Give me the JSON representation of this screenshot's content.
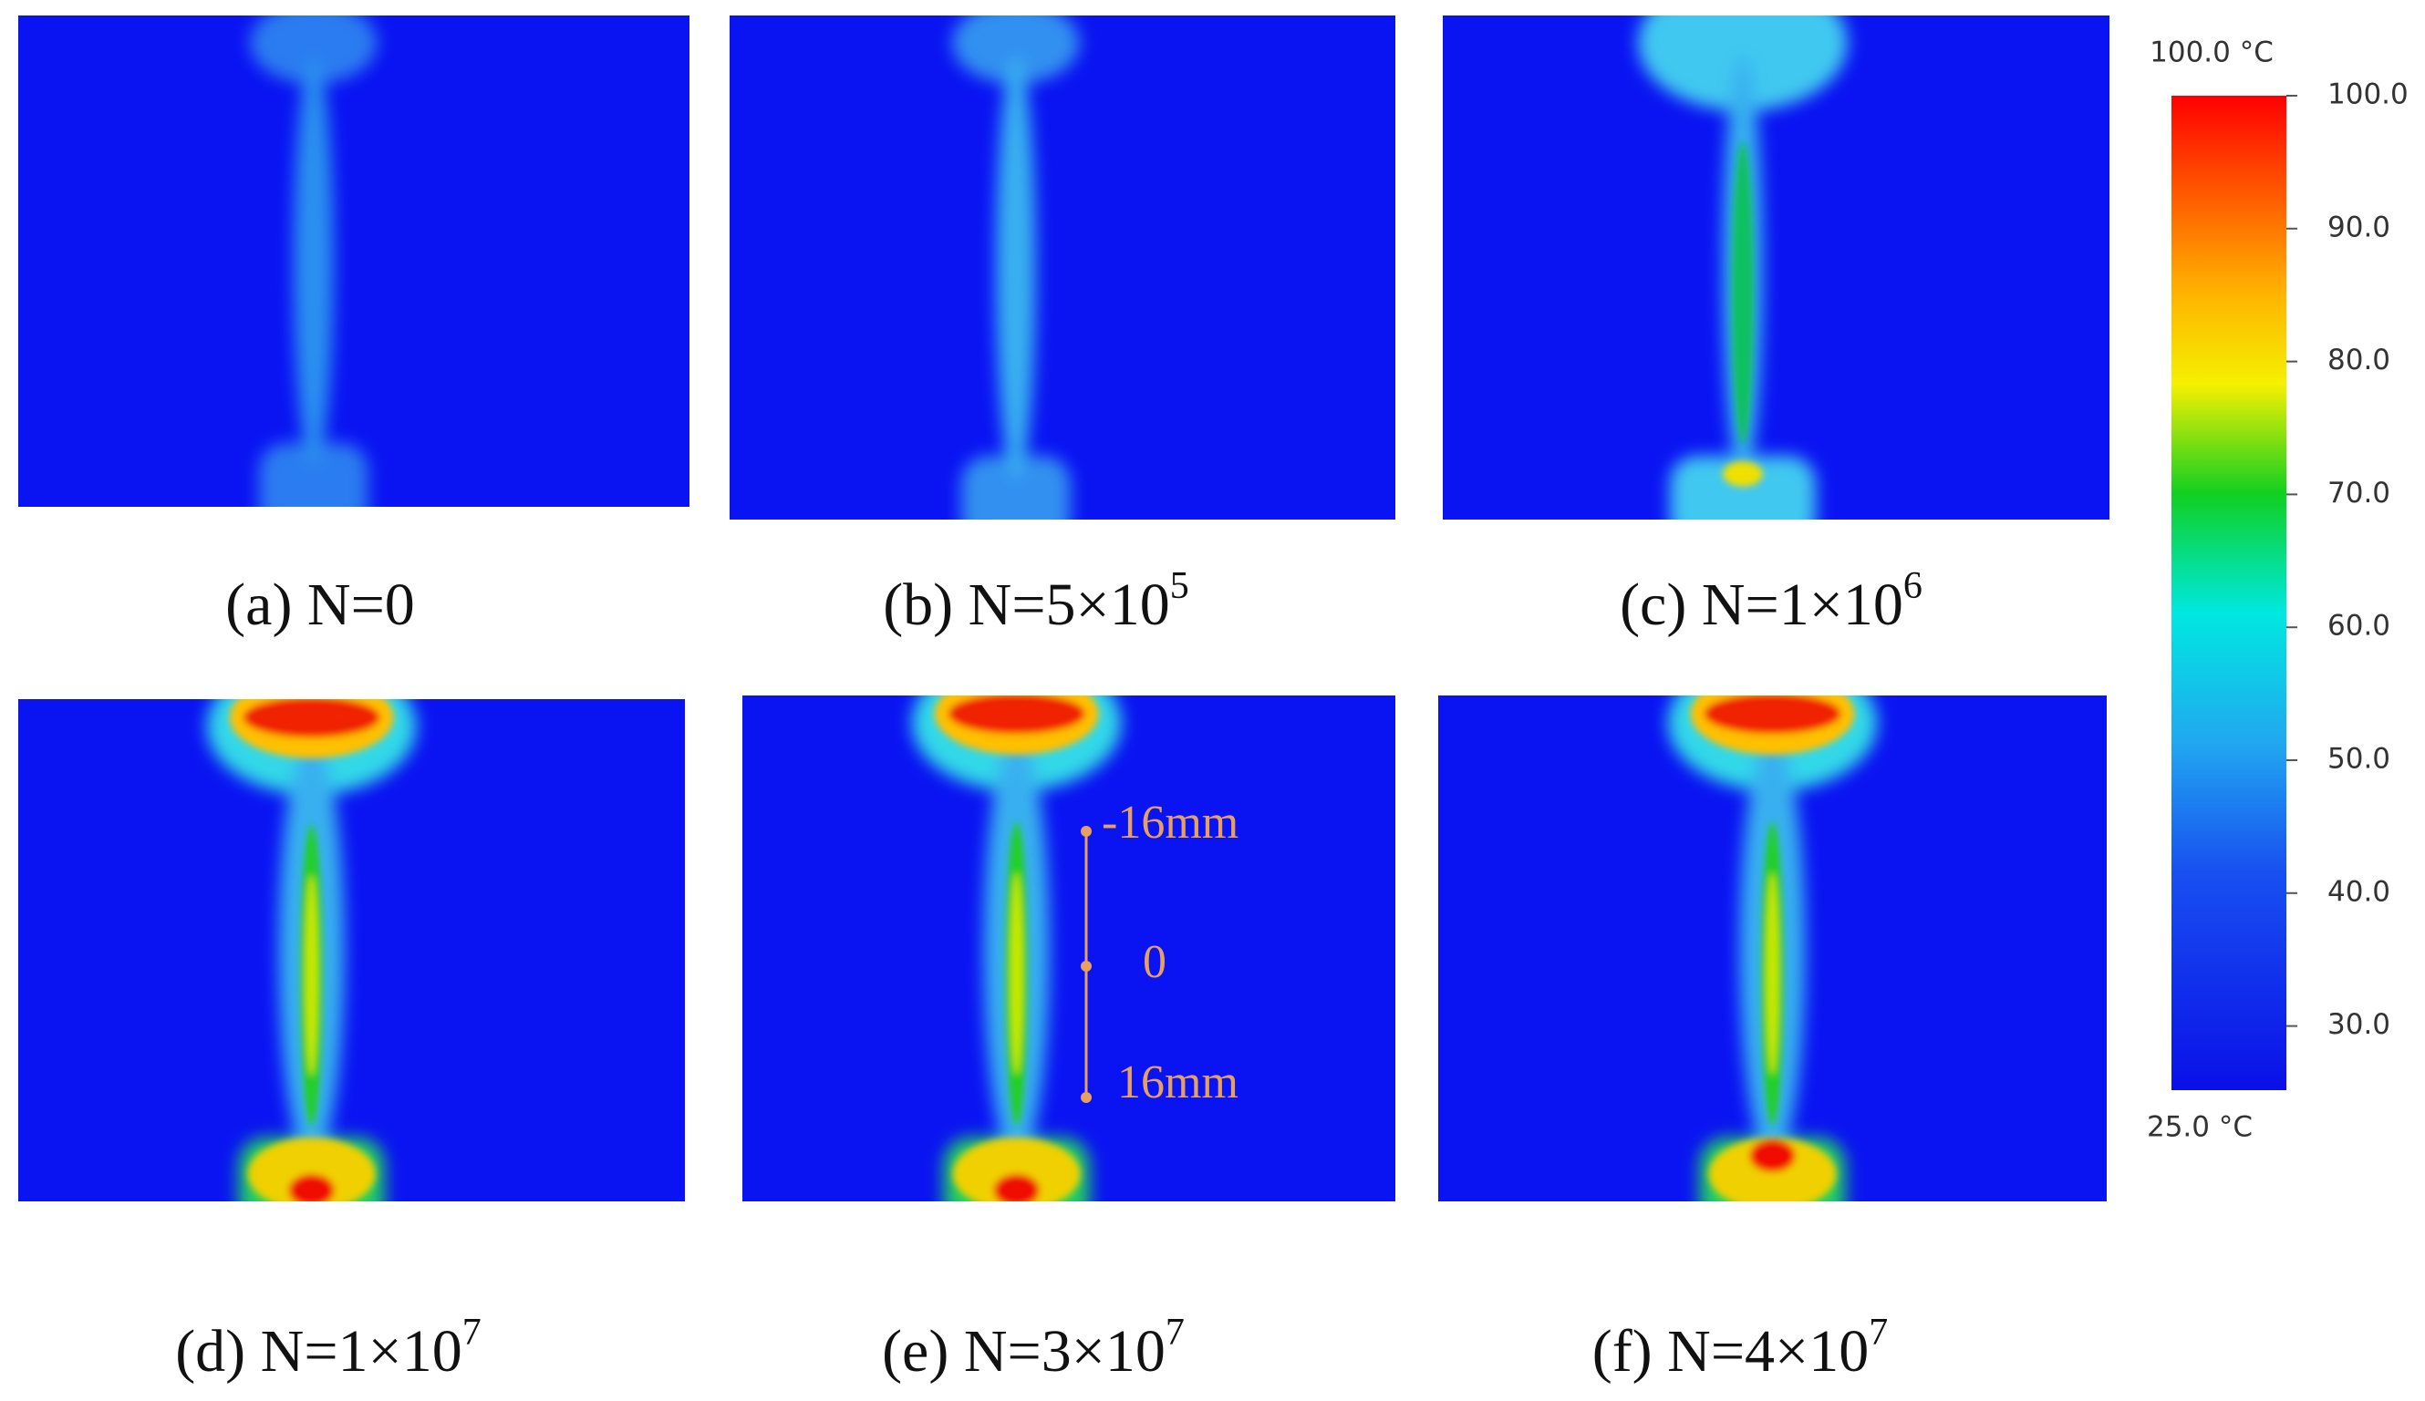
{
  "panels": [
    {
      "label": "(a) N=0",
      "exponent": null
    },
    {
      "label": "(b) N=5×10",
      "exponent": "5"
    },
    {
      "label": "(c) N=1×10",
      "exponent": "6"
    },
    {
      "label": "(d) N=1×10",
      "exponent": "7"
    },
    {
      "label": "(e) N=3×10",
      "exponent": "7"
    },
    {
      "label": "(f) N=4×10",
      "exponent": "7"
    }
  ],
  "annotations": [
    "-16mm",
    "0",
    "16mm"
  ],
  "colorbar": {
    "max_label": "100.0 °C",
    "min_label": "25.0 °C",
    "ticks": [
      "100.0",
      "90.0",
      "80.0",
      "70.0",
      "60.0",
      "50.0",
      "40.0",
      "30.0"
    ]
  }
}
